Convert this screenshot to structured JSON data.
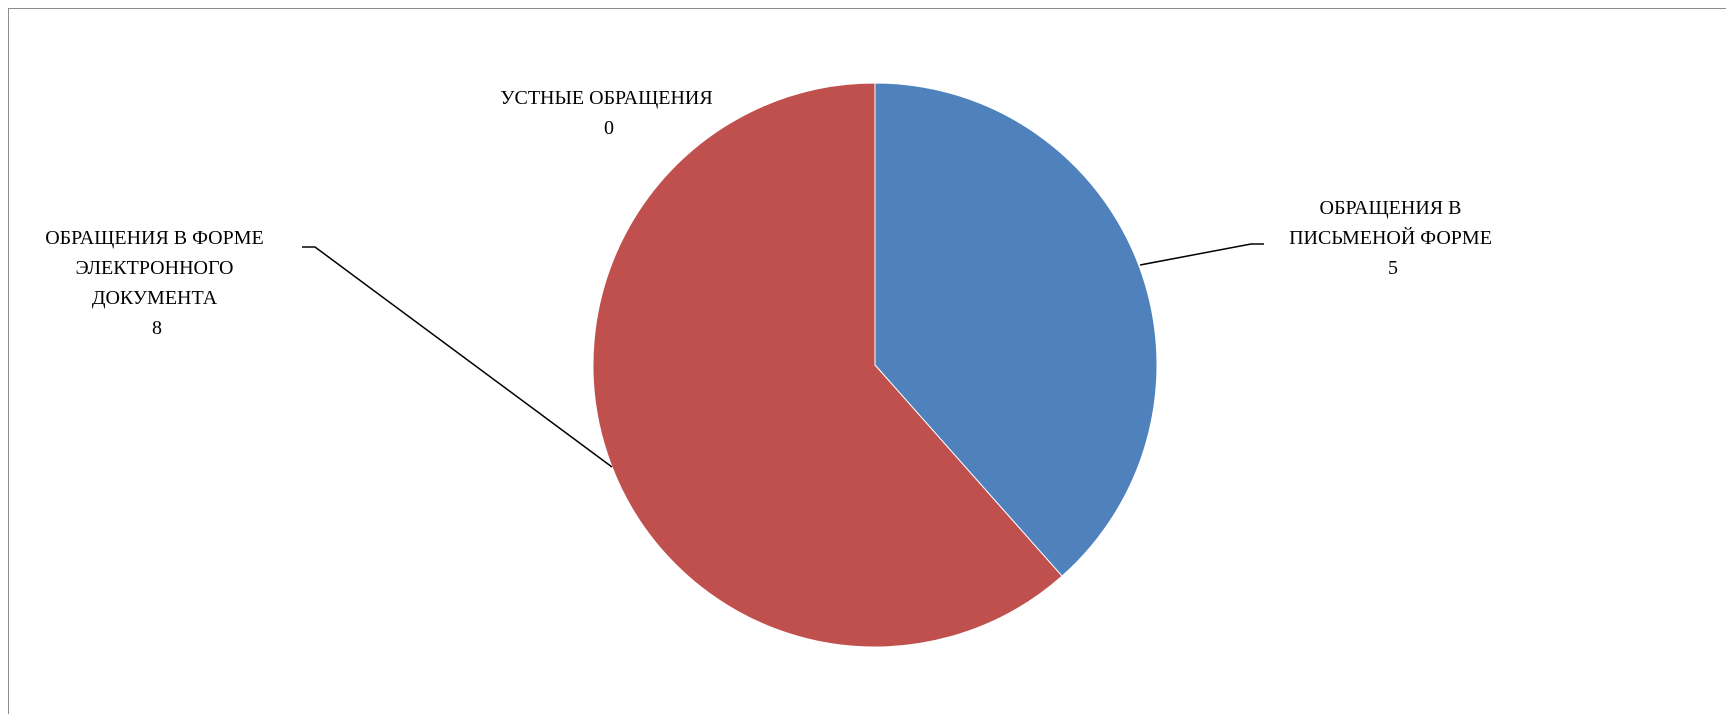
{
  "chart_data": {
    "type": "pie",
    "title": "",
    "legend": "none",
    "slices": [
      {
        "label_lines": [
          "ОБРАЩЕНИЯ В",
          "ПИСЬМЕНОЙ ФОРМЕ"
        ],
        "value": 5,
        "value_label": "5",
        "color": "#4F81BD"
      },
      {
        "label_lines": [
          "ОБРАЩЕНИЯ В ФОРМЕ",
          "ЭЛЕКТРОННОГО",
          "ДОКУМЕНТА"
        ],
        "value": 8,
        "value_label": "8",
        "color": "#C0504D"
      },
      {
        "label_lines": [
          "УСТНЫЕ ОБРАЩЕНИЯ"
        ],
        "value": 0,
        "value_label": "0",
        "color": "#9BBB59"
      }
    ]
  }
}
